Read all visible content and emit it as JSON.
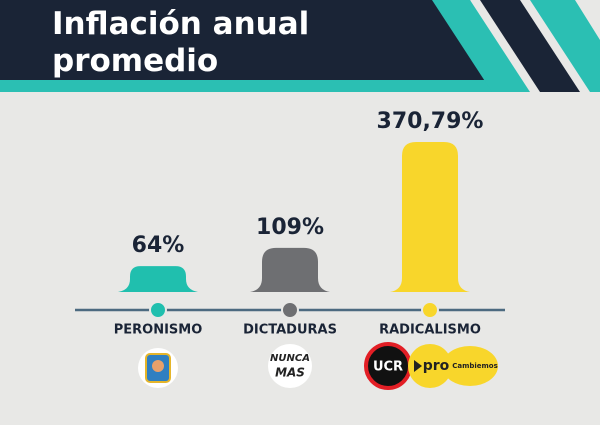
{
  "chart_data": {
    "type": "bar",
    "title": "Inflación anual promedio",
    "categories": [
      "PERONISMO",
      "DICTADURAS",
      "RADICALISMO"
    ],
    "values": [
      64,
      109,
      370.79
    ],
    "value_labels": [
      "64%",
      "109%",
      "370,79%"
    ],
    "colors": [
      "#20bfae",
      "#6e6f72",
      "#f8d62b"
    ],
    "annotations": [
      "NUNCA",
      "MAS",
      "UCR",
      "pro",
      "Cambiemos"
    ]
  }
}
